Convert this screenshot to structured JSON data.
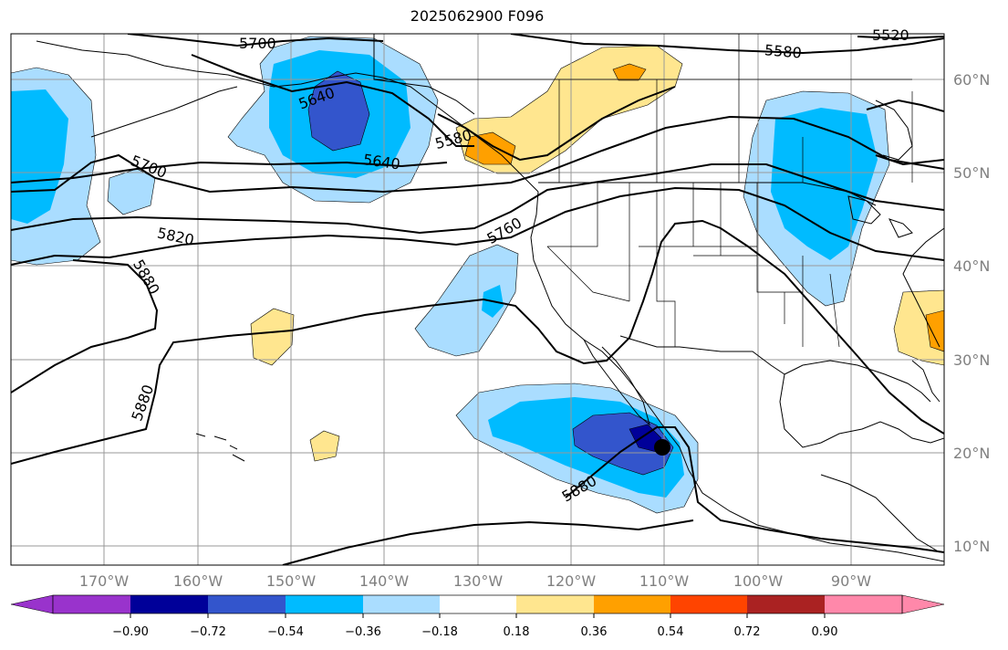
{
  "title": "2025062900 F096",
  "lat_labels": [
    "60°N",
    "50°N",
    "40°N",
    "30°N",
    "20°N",
    "10°N"
  ],
  "lon_labels": [
    "170°W",
    "160°W",
    "150°W",
    "140°W",
    "130°W",
    "120°W",
    "110°W",
    "100°W",
    "90°W"
  ],
  "contour_labels": [
    "5700",
    "5640",
    "5580",
    "5520",
    "5640",
    "5700",
    "5760",
    "5820",
    "5880",
    "5880",
    "5880",
    "5580"
  ],
  "colorbar": {
    "ticks": [
      "−0.90",
      "−0.72",
      "−0.54",
      "−0.36",
      "−0.18",
      "0.18",
      "0.36",
      "0.54",
      "0.72",
      "0.90"
    ],
    "colors": {
      "below": "#9933cc",
      "c1": "#000099",
      "c2": "#3355cc",
      "c3": "#00bbff",
      "c4": "#aaddff",
      "c5": "#ffffff",
      "c6": "#ffe68f",
      "c7": "#ffa000",
      "c8": "#ff4400",
      "c9": "#aa2222",
      "above": "#ff88aa"
    }
  },
  "marker": {
    "type": "storm-center",
    "lat": 20.5,
    "lon": -110.3
  }
}
